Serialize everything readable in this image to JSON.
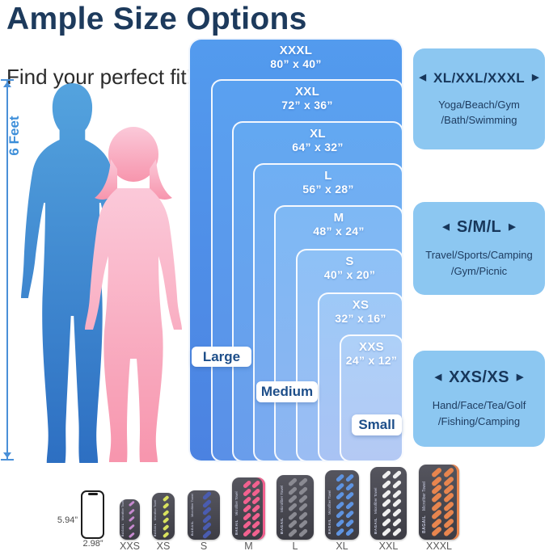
{
  "header": {
    "title": "Ample Size Options",
    "subtitle": "Find your perfect fit!"
  },
  "measure": {
    "label": "6 Feet"
  },
  "sizes": [
    {
      "name": "XXXL",
      "dims": "80” x 40”"
    },
    {
      "name": "XXL",
      "dims": "72” x 36”"
    },
    {
      "name": "XL",
      "dims": "64” x 32”"
    },
    {
      "name": "L",
      "dims": "56” x 28”"
    },
    {
      "name": "M",
      "dims": "48” x 24”"
    },
    {
      "name": "S",
      "dims": "40” x 20”"
    },
    {
      "name": "XS",
      "dims": "32” x 16”"
    },
    {
      "name": "XXS",
      "dims": "24” x 12”"
    }
  ],
  "category_labels": [
    {
      "text": "Large"
    },
    {
      "text": "Medium"
    },
    {
      "text": "Small"
    }
  ],
  "cards": [
    {
      "title": "XL/XXL/XXXL",
      "lines": [
        "Yoga/Beach/Gym",
        "/Bath/Swimming"
      ]
    },
    {
      "title": "S/M/L",
      "lines": [
        "Travel/Sports/Camping",
        "/Gym/Picnic"
      ]
    },
    {
      "title": "XXS/XS",
      "lines": [
        "Hand/Face/Tea/Golf",
        "/Fishing/Camping"
      ]
    }
  ],
  "icons": {
    "left_arrow": "◀",
    "right_arrow": "▶"
  },
  "phone": {
    "height_label": "5.94”",
    "width_label": "2.98”"
  },
  "brand": {
    "name": "BAGAIL",
    "product": "Microfiber Towel"
  },
  "towels": [
    {
      "label": "XXS",
      "stripe_color": "#c689cf",
      "rows": 5,
      "cols": 1,
      "edge": false
    },
    {
      "label": "XS",
      "stripe_color": "#d9e25e",
      "rows": 6,
      "cols": 1,
      "edge": false
    },
    {
      "label": "S",
      "stripe_color": "#4a5cb0",
      "rows": 6,
      "cols": 1,
      "edge": false
    },
    {
      "label": "M",
      "stripe_color": "#f2618f",
      "rows": 7,
      "cols": 2,
      "edge": true
    },
    {
      "label": "L",
      "stripe_color": "#8a8a92",
      "rows": 7,
      "cols": 2,
      "edge": false
    },
    {
      "label": "XL",
      "stripe_color": "#5e93e0",
      "rows": 7,
      "cols": 2,
      "edge": false
    },
    {
      "label": "XXL",
      "stripe_color": "#efefef",
      "rows": 7,
      "cols": 2,
      "edge": false
    },
    {
      "label": "XXXL",
      "stripe_color": "#e8854e",
      "rows": 8,
      "cols": 2,
      "edge": true
    }
  ],
  "colors": {
    "title_text": "#1d3a5c",
    "card_bg": "#8cc7f1",
    "card_text": "#17365a",
    "category_text": "#1d4e89",
    "male_figure": "#3f86cf",
    "female_figure": "#f8a9c0",
    "measure_line": "#4a90d8",
    "towel_body": "#47474f"
  }
}
